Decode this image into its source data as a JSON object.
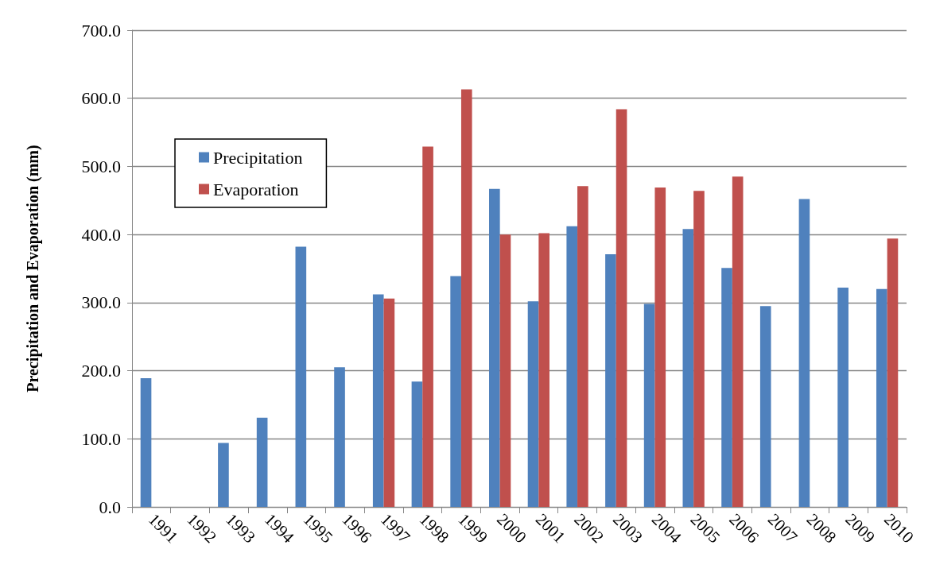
{
  "chart_data": {
    "type": "bar",
    "ylabel": "Precipitation and Evaporation (mm)",
    "categories": [
      "1991",
      "1992",
      "1993",
      "1994",
      "1995",
      "1996",
      "1997",
      "1998",
      "1999",
      "2000",
      "2001",
      "2002",
      "2003",
      "2004",
      "2005",
      "2006",
      "2007",
      "2008",
      "2009",
      "2010"
    ],
    "series": [
      {
        "name": "Precipitation",
        "color": "#4f81bd",
        "values": [
          189,
          null,
          94,
          131,
          382,
          205,
          312,
          184,
          339,
          467,
          302,
          412,
          371,
          298,
          408,
          351,
          295,
          452,
          322,
          320
        ]
      },
      {
        "name": "Evaporation",
        "color": "#c0504d",
        "values": [
          null,
          null,
          null,
          null,
          null,
          null,
          306,
          529,
          613,
          400,
          402,
          471,
          584,
          469,
          464,
          485,
          null,
          null,
          null,
          394
        ]
      }
    ],
    "ylim": [
      0,
      700
    ],
    "yticks": [
      {
        "value": 0,
        "label": "0.0"
      },
      {
        "value": 100,
        "label": "100.0"
      },
      {
        "value": 200,
        "label": "200.0"
      },
      {
        "value": 300,
        "label": "300.0"
      },
      {
        "value": 400,
        "label": "400.0"
      },
      {
        "value": 500,
        "label": "500.0"
      },
      {
        "value": 600,
        "label": "600.0"
      },
      {
        "value": 700,
        "label": "700.0"
      }
    ],
    "grid": "y",
    "legend": "top left"
  }
}
